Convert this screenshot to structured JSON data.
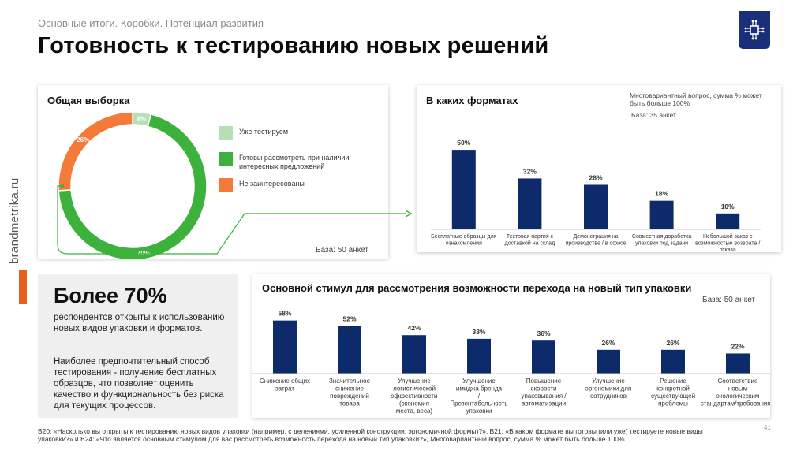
{
  "header": {
    "breadcrumb": "Основные итоги. Коробки. Потенциал развития",
    "title": "Готовность к тестированию новых решений",
    "logo_icon": "circuit-chip-icon"
  },
  "sidebar": {
    "brand": "brandmetrika.ru"
  },
  "colors": {
    "navy": "#0d2b6b",
    "green": "#3cb23c",
    "light_green": "#b6dfb6",
    "orange": "#f47a3a",
    "accent": "#e8611a"
  },
  "chart_data": [
    {
      "type": "pie",
      "title": "Общая выборка",
      "categories": [
        "Уже тестируем",
        "Готовы рассмотреть при наличии интересных предложений",
        "Не заинтересованы"
      ],
      "values": [
        4,
        70,
        26
      ],
      "value_labels": [
        "4%",
        "70%",
        "26%"
      ],
      "colors": [
        "#b6dfb6",
        "#3cb23c",
        "#f47a3a"
      ],
      "legend_position": "right",
      "base": "База: 50 анкет"
    },
    {
      "type": "bar",
      "title": "В каких форматах",
      "note": "Многовариантный вопрос, сумма % может быть больше 100%",
      "base": "База: 35 анкет",
      "categories": [
        "Бесплатные образцы для ознакомления",
        "Тестовая партия с доставкой на склад",
        "Демонстрация на производстве / в офисе",
        "Совместная доработка упаковки под задачи",
        "Небольшой заказ с возможностью возврата / отказа"
      ],
      "values": [
        50,
        32,
        28,
        18,
        10
      ],
      "value_labels": [
        "50%",
        "32%",
        "28%",
        "18%",
        "10%"
      ],
      "ylim": [
        0,
        55
      ]
    },
    {
      "type": "bar",
      "title": "Основной стимул для рассмотрения возможности перехода на новый тип упаковки",
      "base": "База: 50 анкет",
      "categories": [
        "Снижение общих затрат",
        "Значительное снижение повреждений товара",
        "Улучшение логистической эффективности (экономия места, веса)",
        "Улучшение имиджа бренда / Презентабельность упаковки",
        "Повышение скорости упаковывания / автоматизации",
        "Улучшение эргономики для сотрудников",
        "Решение конкретной существующей проблемы",
        "Соответствие новым экологическим стандартам/требованиям"
      ],
      "values": [
        58,
        52,
        42,
        38,
        36,
        26,
        26,
        22
      ],
      "value_labels": [
        "58%",
        "52%",
        "42%",
        "38%",
        "36%",
        "26%",
        "26%",
        "22%"
      ],
      "ylim": [
        0,
        62
      ]
    }
  ],
  "highlight": {
    "big": "Более 70%",
    "text1": "респондентов открыты к использованию новых видов упаковки и форматов.",
    "text2": "Наиболее предпочтительный способ тестирования - получение бесплатных образцов, что позволяет оценить качество и функциональность без риска для текущих процессов."
  },
  "footnote": "B20: «Насколько вы открыты к тестированию новых видов упаковки (например, с делениями, усиленной конструкции, эргономичной формы)?», B21: «В каком формате вы готовы (или уже) тестируете новые виды упаковки?» и B24: «Что является основным стимулом для вас рассмотреть возможность перехода на новый тип упаковки?», Многовариантный вопрос, сумма % может быть больше 100%",
  "page_number": "41"
}
